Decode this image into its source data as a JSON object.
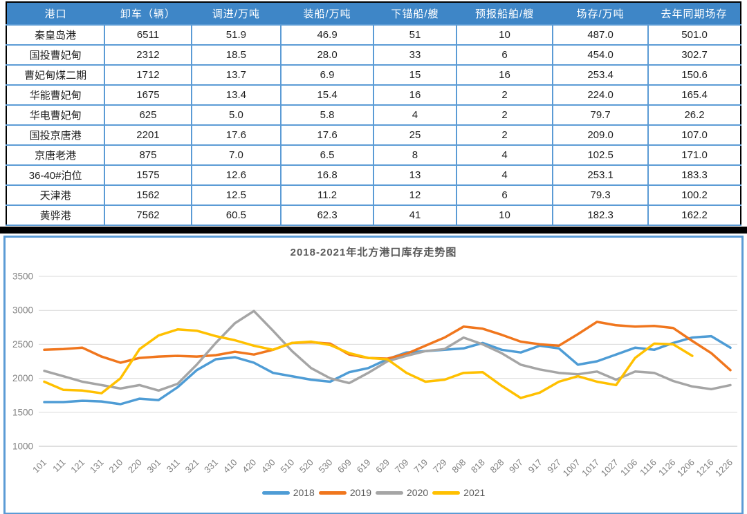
{
  "table": {
    "headers": [
      "港口",
      "卸车（辆）",
      "调进/万吨",
      "装船/万吨",
      "下锚船/艘",
      "预报船舶/艘",
      "场存/万吨",
      "去年同期场存"
    ],
    "rows": [
      [
        "秦皇岛港",
        "6511",
        "51.9",
        "46.9",
        "51",
        "10",
        "487.0",
        "501.0"
      ],
      [
        "国投曹妃甸",
        "2312",
        "18.5",
        "28.0",
        "33",
        "6",
        "454.0",
        "302.7"
      ],
      [
        "曹妃甸煤二期",
        "1712",
        "13.7",
        "6.9",
        "15",
        "16",
        "253.4",
        "150.6"
      ],
      [
        "华能曹妃甸",
        "1675",
        "13.4",
        "15.4",
        "16",
        "2",
        "224.0",
        "165.4"
      ],
      [
        "华电曹妃甸",
        "625",
        "5.0",
        "5.8",
        "4",
        "2",
        "79.7",
        "26.2"
      ],
      [
        "国投京唐港",
        "2201",
        "17.6",
        "17.6",
        "25",
        "2",
        "209.0",
        "107.0"
      ],
      [
        "京唐老港",
        "875",
        "7.0",
        "6.5",
        "8",
        "4",
        "102.5",
        "171.0"
      ],
      [
        "36-40#泊位",
        "1575",
        "12.6",
        "16.8",
        "13",
        "4",
        "253.1",
        "183.3"
      ],
      [
        "天津港",
        "1562",
        "12.5",
        "11.2",
        "12",
        "6",
        "79.3",
        "100.2"
      ],
      [
        "黄骅港",
        "7562",
        "60.5",
        "62.3",
        "41",
        "10",
        "182.3",
        "162.2"
      ]
    ]
  },
  "chart_data": {
    "type": "line",
    "title": "2018-2021年北方港口库存走势图",
    "xlabel": "",
    "ylabel": "",
    "ylim": [
      1000,
      3500
    ],
    "yticks": [
      3500,
      3000,
      2500,
      2000,
      1500,
      1000
    ],
    "grid": true,
    "legend_position": "bottom",
    "x": [
      "101",
      "111",
      "121",
      "131",
      "210",
      "220",
      "301",
      "311",
      "321",
      "331",
      "410",
      "420",
      "430",
      "510",
      "520",
      "530",
      "609",
      "619",
      "629",
      "709",
      "719",
      "729",
      "808",
      "818",
      "828",
      "907",
      "917",
      "927",
      "1007",
      "1017",
      "1027",
      "1106",
      "1116",
      "1126",
      "1206",
      "1216",
      "1226"
    ],
    "series": [
      {
        "name": "2018",
        "color": "#4E9CD5",
        "values": [
          1650,
          1650,
          1670,
          1660,
          1620,
          1700,
          1680,
          1870,
          2120,
          2280,
          2310,
          2230,
          2080,
          2030,
          1980,
          1950,
          2090,
          2150,
          2280,
          2380,
          2400,
          2420,
          2440,
          2520,
          2420,
          2380,
          2480,
          2440,
          2200,
          2250,
          2350,
          2450,
          2420,
          2520,
          2600,
          2620,
          2450
        ]
      },
      {
        "name": "2019",
        "color": "#F0761D",
        "values": [
          2420,
          2430,
          2450,
          2320,
          2230,
          2300,
          2320,
          2330,
          2320,
          2340,
          2390,
          2350,
          2420,
          2520,
          2530,
          2510,
          2350,
          2300,
          2290,
          2360,
          2480,
          2600,
          2760,
          2730,
          2640,
          2540,
          2500,
          2480,
          2650,
          2830,
          2780,
          2760,
          2770,
          2740,
          2550,
          2370,
          2120
        ]
      },
      {
        "name": "2020",
        "color": "#A5A5A5",
        "values": [
          2110,
          2030,
          1950,
          1900,
          1850,
          1900,
          1820,
          1920,
          2200,
          2520,
          2810,
          2990,
          2700,
          2400,
          2150,
          2000,
          1930,
          2080,
          2250,
          2330,
          2400,
          2430,
          2600,
          2500,
          2370,
          2200,
          2130,
          2080,
          2060,
          2100,
          1980,
          2100,
          2080,
          1960,
          1880,
          1840,
          1900
        ]
      },
      {
        "name": "2021",
        "color": "#FFC000",
        "values": [
          1950,
          1830,
          1820,
          1780,
          2000,
          2430,
          2630,
          2720,
          2700,
          2620,
          2560,
          2480,
          2420,
          2520,
          2540,
          2490,
          2370,
          2300,
          2280,
          2080,
          1950,
          1980,
          2080,
          2090,
          1890,
          1710,
          1790,
          1950,
          2030,
          1950,
          1900,
          2300,
          2510,
          2500,
          2330,
          null,
          null
        ]
      }
    ]
  },
  "colors": {
    "table_header_bg": "#3E86C7",
    "table_border": "#5B9BD5",
    "table_outer_border": "#000000",
    "panel_border": "#5B9BD5",
    "separator": "#000000",
    "gridline": "#D9D9D9",
    "axis_text": "#808080",
    "title_text": "#595959"
  }
}
